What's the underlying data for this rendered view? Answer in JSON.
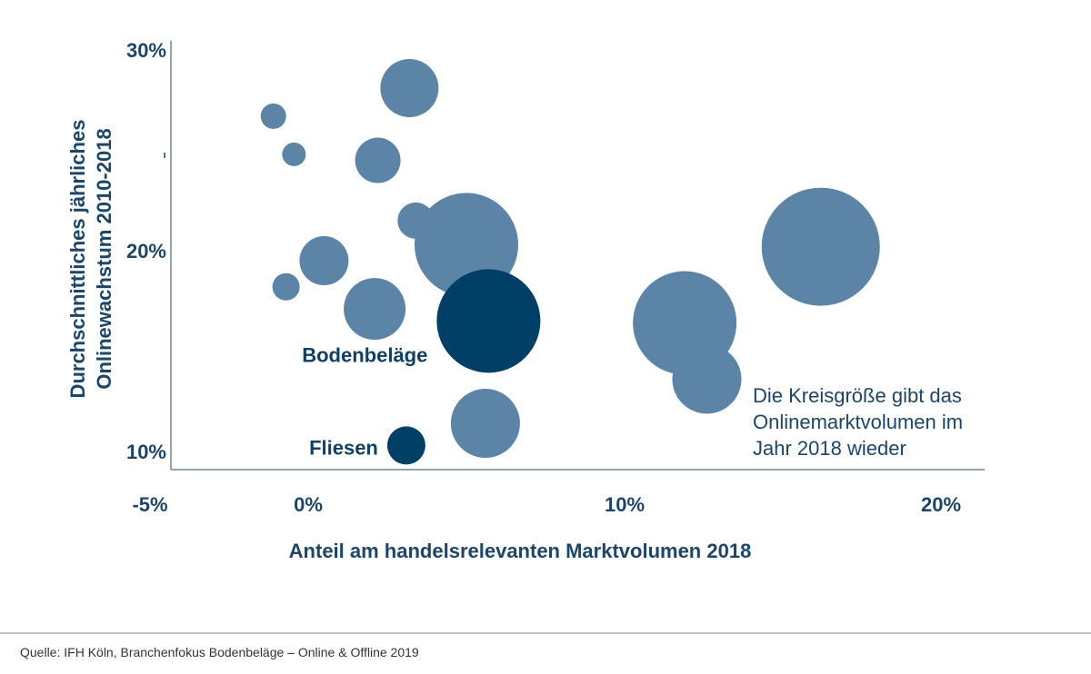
{
  "chart_data": {
    "type": "scatter",
    "subtype": "bubble",
    "xlabel": "Anteil am handelsrelevanten Marktvolumen 2018",
    "ylabel": [
      "Durchschnittliches jährliches",
      "Onlinewachstum 2010-2018"
    ],
    "xlim": [
      -5,
      21
    ],
    "ylim": [
      10,
      30
    ],
    "x_ticks": [
      "-5%",
      "0%",
      "10%",
      "20%"
    ],
    "x_tick_values": [
      -5,
      0,
      10,
      20
    ],
    "y_ticks": [
      "30%",
      "20%",
      "10%"
    ],
    "y_tick_values": [
      30,
      20,
      10
    ],
    "grid": false,
    "colors": {
      "default": "#5b84a6",
      "highlight": "#003f66",
      "text": "#1b4669"
    },
    "points": [
      {
        "x": 3.2,
        "y": 28.1,
        "size": 32,
        "highlight": false
      },
      {
        "x": -1.1,
        "y": 26.7,
        "size": 14,
        "highlight": false
      },
      {
        "x": -0.45,
        "y": 24.8,
        "size": 13,
        "highlight": false
      },
      {
        "x": 2.2,
        "y": 24.5,
        "size": 25,
        "highlight": false
      },
      {
        "x": 3.4,
        "y": 21.5,
        "size": 20,
        "highlight": false
      },
      {
        "x": 5.0,
        "y": 20.3,
        "size": 57,
        "highlight": false
      },
      {
        "x": 0.5,
        "y": 19.5,
        "size": 27,
        "highlight": false
      },
      {
        "x": -0.7,
        "y": 18.2,
        "size": 15,
        "highlight": false
      },
      {
        "x": 2.1,
        "y": 17.1,
        "size": 34,
        "highlight": false
      },
      {
        "x": 11.9,
        "y": 16.4,
        "size": 57,
        "highlight": false
      },
      {
        "x": 12.6,
        "y": 13.6,
        "size": 38,
        "highlight": false
      },
      {
        "x": 16.2,
        "y": 20.2,
        "size": 65,
        "highlight": false
      },
      {
        "x": 5.6,
        "y": 11.4,
        "size": 38,
        "highlight": false
      },
      {
        "x": 5.7,
        "y": 16.5,
        "size": 57,
        "highlight": true,
        "label": "Bodenbeläge"
      },
      {
        "x": 3.1,
        "y": 10.3,
        "size": 21,
        "highlight": true,
        "label": "Fliesen"
      }
    ],
    "annotation": [
      "Die Kreisgröße gibt das",
      "Onlinemarktvolumen im",
      "Jahr 2018 wieder"
    ]
  },
  "source": "Quelle: IFH Köln, Branchenfokus Bodenbeläge – Online & Offline 2019"
}
